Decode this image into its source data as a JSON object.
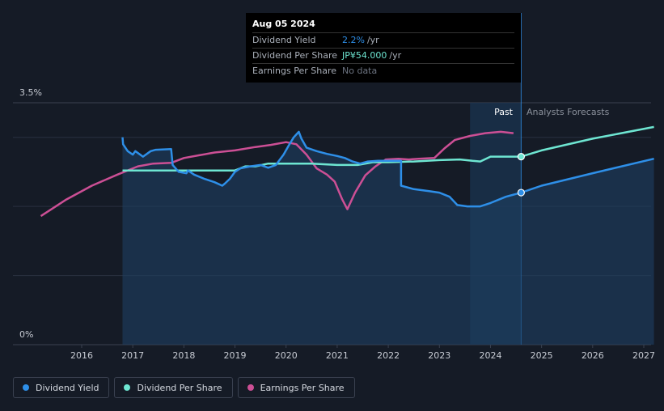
{
  "tooltip": {
    "date": "Aug 05 2024",
    "rows": [
      {
        "label": "Dividend Yield",
        "value": "2.2%",
        "unit": "/yr"
      },
      {
        "label": "Dividend Per Share",
        "value": "JP¥54.000",
        "unit": "/yr"
      },
      {
        "label": "Earnings Per Share",
        "value": "No data",
        "unit": ""
      }
    ]
  },
  "labels": {
    "past": "Past",
    "forecast": "Analysts Forecasts"
  },
  "legend": [
    {
      "label": "Dividend Yield",
      "color": "#2e8fe8"
    },
    {
      "label": "Dividend Per Share",
      "color": "#6ee6d2"
    },
    {
      "label": "Earnings Per Share",
      "color": "#cc4f95"
    }
  ],
  "colors": {
    "yield": "#2e8fe8",
    "dps": "#6ee6d2",
    "eps": "#cc4f95"
  },
  "chart_data": {
    "type": "line",
    "title": "",
    "xlabel": "",
    "ylabel": "",
    "ylim": [
      0,
      3.5
    ],
    "y_ticks": [
      "0%",
      "3.5%"
    ],
    "xlim": [
      2015.2,
      2027.2
    ],
    "x_ticks": [
      2016,
      2017,
      2018,
      2019,
      2020,
      2021,
      2022,
      2023,
      2024,
      2025,
      2026,
      2027
    ],
    "past_range": [
      2023.6,
      2024.6
    ],
    "current_date": 2024.6,
    "series": [
      {
        "name": "Dividend Yield",
        "unit": "%",
        "values": [
          [
            2016.8,
            3.0
          ],
          [
            2016.81,
            2.9
          ],
          [
            2016.9,
            2.8
          ],
          [
            2017.0,
            2.75
          ],
          [
            2017.05,
            2.8
          ],
          [
            2017.2,
            2.72
          ],
          [
            2017.35,
            2.8
          ],
          [
            2017.45,
            2.82
          ],
          [
            2017.75,
            2.83
          ],
          [
            2017.78,
            2.6
          ],
          [
            2017.9,
            2.5
          ],
          [
            2018.05,
            2.48
          ],
          [
            2018.08,
            2.52
          ],
          [
            2018.2,
            2.46
          ],
          [
            2018.4,
            2.4
          ],
          [
            2018.6,
            2.35
          ],
          [
            2018.75,
            2.3
          ],
          [
            2018.8,
            2.33
          ],
          [
            2018.9,
            2.4
          ],
          [
            2019.0,
            2.5
          ],
          [
            2019.1,
            2.55
          ],
          [
            2019.3,
            2.58
          ],
          [
            2019.5,
            2.6
          ],
          [
            2019.65,
            2.56
          ],
          [
            2019.8,
            2.6
          ],
          [
            2019.95,
            2.75
          ],
          [
            2020.05,
            2.88
          ],
          [
            2020.15,
            3.0
          ],
          [
            2020.25,
            3.08
          ],
          [
            2020.3,
            2.98
          ],
          [
            2020.4,
            2.85
          ],
          [
            2020.6,
            2.8
          ],
          [
            2020.8,
            2.76
          ],
          [
            2021.0,
            2.73
          ],
          [
            2021.15,
            2.7
          ],
          [
            2021.3,
            2.65
          ],
          [
            2021.45,
            2.62
          ],
          [
            2021.6,
            2.65
          ],
          [
            2021.8,
            2.66
          ],
          [
            2021.95,
            2.66
          ],
          [
            2022.25,
            2.66
          ],
          [
            2022.25,
            2.3
          ],
          [
            2022.5,
            2.25
          ],
          [
            2022.8,
            2.22
          ],
          [
            2023.0,
            2.2
          ],
          [
            2023.2,
            2.14
          ],
          [
            2023.35,
            2.02
          ],
          [
            2023.55,
            2.0
          ],
          [
            2023.8,
            2.0
          ],
          [
            2024.0,
            2.05
          ],
          [
            2024.3,
            2.14
          ],
          [
            2024.6,
            2.2
          ],
          [
            2025.0,
            2.3
          ],
          [
            2026.0,
            2.48
          ],
          [
            2027.2,
            2.69
          ]
        ]
      },
      {
        "name": "Dividend Per Share",
        "unit": "JP¥",
        "values": [
          [
            2016.8,
            2.52
          ],
          [
            2017.5,
            2.52
          ],
          [
            2018.5,
            2.52
          ],
          [
            2019.0,
            2.52
          ],
          [
            2019.2,
            2.58
          ],
          [
            2019.4,
            2.58
          ],
          [
            2019.65,
            2.62
          ],
          [
            2020.0,
            2.62
          ],
          [
            2020.5,
            2.62
          ],
          [
            2021.0,
            2.6
          ],
          [
            2021.4,
            2.6
          ],
          [
            2021.7,
            2.64
          ],
          [
            2022.0,
            2.64
          ],
          [
            2022.5,
            2.65
          ],
          [
            2023.0,
            2.67
          ],
          [
            2023.4,
            2.68
          ],
          [
            2023.65,
            2.66
          ],
          [
            2023.8,
            2.65
          ],
          [
            2024.0,
            2.72
          ],
          [
            2024.6,
            2.72
          ],
          [
            2025.0,
            2.81
          ],
          [
            2026.0,
            2.98
          ],
          [
            2027.2,
            3.15
          ]
        ]
      },
      {
        "name": "Earnings Per Share",
        "unit": "JP¥",
        "values": [
          [
            2015.2,
            1.86
          ],
          [
            2015.7,
            2.1
          ],
          [
            2016.2,
            2.3
          ],
          [
            2016.7,
            2.46
          ],
          [
            2017.1,
            2.58
          ],
          [
            2017.4,
            2.62
          ],
          [
            2017.75,
            2.63
          ],
          [
            2018.0,
            2.7
          ],
          [
            2018.3,
            2.74
          ],
          [
            2018.6,
            2.78
          ],
          [
            2019.0,
            2.81
          ],
          [
            2019.4,
            2.86
          ],
          [
            2019.7,
            2.89
          ],
          [
            2020.0,
            2.93
          ],
          [
            2020.2,
            2.9
          ],
          [
            2020.4,
            2.75
          ],
          [
            2020.6,
            2.55
          ],
          [
            2020.8,
            2.46
          ],
          [
            2020.95,
            2.36
          ],
          [
            2021.1,
            2.1
          ],
          [
            2021.2,
            1.96
          ],
          [
            2021.35,
            2.2
          ],
          [
            2021.55,
            2.45
          ],
          [
            2021.75,
            2.58
          ],
          [
            2021.95,
            2.68
          ],
          [
            2022.2,
            2.69
          ],
          [
            2022.4,
            2.68
          ],
          [
            2022.6,
            2.69
          ],
          [
            2022.9,
            2.7
          ],
          [
            2023.1,
            2.84
          ],
          [
            2023.3,
            2.96
          ],
          [
            2023.6,
            3.02
          ],
          [
            2023.9,
            3.06
          ],
          [
            2024.2,
            3.08
          ],
          [
            2024.45,
            3.06
          ]
        ]
      }
    ]
  }
}
